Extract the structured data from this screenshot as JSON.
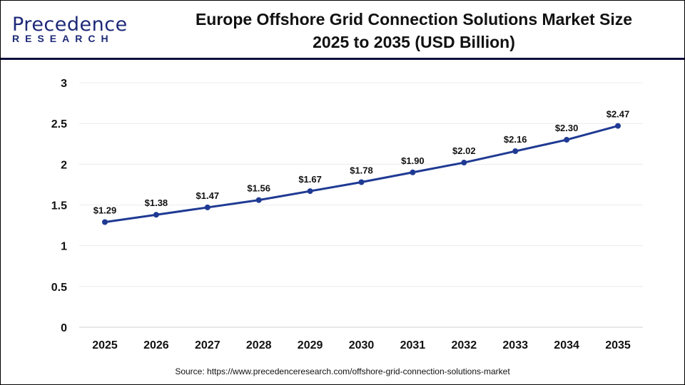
{
  "logo": {
    "main": "Precedence",
    "sub": "RESEARCH"
  },
  "title_line1": "Europe Offshore Grid Connection Solutions Market Size",
  "title_line2": "2025 to 2035 (USD Billion)",
  "source": "Source: https://www.precedenceresearch.com/offshore-grid-connection-solutions-market",
  "chart_data": {
    "type": "line",
    "categories": [
      "2025",
      "2026",
      "2027",
      "2028",
      "2029",
      "2030",
      "2031",
      "2032",
      "2033",
      "2034",
      "2035"
    ],
    "values": [
      1.29,
      1.38,
      1.47,
      1.56,
      1.67,
      1.78,
      1.9,
      2.02,
      2.16,
      2.3,
      2.47
    ],
    "data_labels": [
      "$1.29",
      "$1.38",
      "$1.47",
      "$1.56",
      "$1.67",
      "$1.78",
      "$1.90",
      "$2.02",
      "$2.16",
      "$2.30",
      "$2.47"
    ],
    "yticks": [
      "0",
      "0.5",
      "1",
      "1.5",
      "2",
      "2.5",
      "3"
    ],
    "ylim": [
      0,
      3
    ],
    "grid": true,
    "line_color": "#1f3a93"
  }
}
